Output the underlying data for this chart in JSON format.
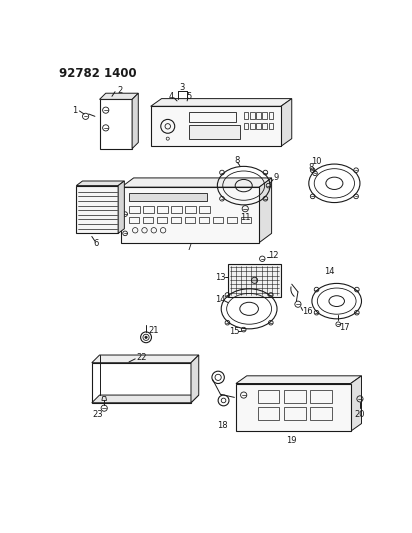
{
  "title": "92782 1400",
  "bg": "#ffffff",
  "lc": "#1a1a1a",
  "fig_w": 4.12,
  "fig_h": 5.33,
  "dpi": 100
}
